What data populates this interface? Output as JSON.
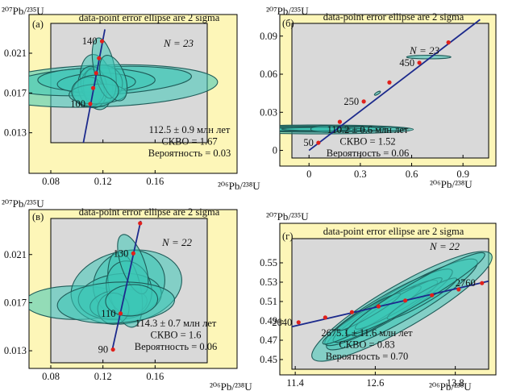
{
  "colors": {
    "frame_fill": "#fdf6b8",
    "plot_fill": "#d9d9d9",
    "ellipse_fill": "#3cc7b6",
    "ellipse_stroke": "#1f5c59",
    "concordia": "#1c2a8c",
    "marker": "#e0201b",
    "text": "#111111"
  },
  "chart_data": [
    {
      "panel": "a",
      "type": "scatter",
      "panel_label": "(а)",
      "title": "data-point error ellipse are 2 sigma",
      "n_label": "N = 23",
      "xlabel": "²⁰⁶Pb/²³⁸U",
      "ylabel": "²⁰⁷Pb/²³⁵U",
      "xlim": [
        0.08,
        0.2
      ],
      "ylim": [
        0.012,
        0.024
      ],
      "xticks": [
        {
          "v": 0.08,
          "t": "0.08"
        },
        {
          "v": 0.12,
          "t": "0.12"
        },
        {
          "v": 0.16,
          "t": "0.16"
        }
      ],
      "yticks": [
        {
          "v": 0.013,
          "t": "0.013"
        },
        {
          "v": 0.017,
          "t": "0.017"
        },
        {
          "v": 0.021,
          "t": "0.021"
        }
      ],
      "concordia": [
        [
          0.105,
          0.012
        ],
        [
          0.1215,
          0.0234
        ]
      ],
      "age_ticks": [
        {
          "x": 0.1193,
          "y": 0.0222,
          "label": "140"
        },
        {
          "x": 0.117,
          "y": 0.0205,
          "label": ""
        },
        {
          "x": 0.1148,
          "y": 0.019,
          "label": ""
        },
        {
          "x": 0.1125,
          "y": 0.0175,
          "label": ""
        },
        {
          "x": 0.1103,
          "y": 0.0159,
          "label": "100"
        }
      ],
      "ellipses": [
        {
          "cx": 0.118,
          "cy": 0.0177,
          "rx": 0.09,
          "ry": 0.0021,
          "rot": -2
        },
        {
          "cx": 0.118,
          "cy": 0.0182,
          "rx": 0.07,
          "ry": 0.0014,
          "rot": -3
        },
        {
          "cx": 0.115,
          "cy": 0.0183,
          "rx": 0.045,
          "ry": 0.0012,
          "rot": 0
        },
        {
          "cx": 0.115,
          "cy": 0.018,
          "rx": 0.03,
          "ry": 0.001,
          "rot": -2
        },
        {
          "cx": 0.115,
          "cy": 0.0181,
          "rx": 0.012,
          "ry": 0.0028,
          "rot": -10
        },
        {
          "cx": 0.119,
          "cy": 0.0179,
          "rx": 0.016,
          "ry": 0.0019,
          "rot": -10
        },
        {
          "cx": 0.112,
          "cy": 0.0176,
          "rx": 0.007,
          "ry": 0.0018,
          "rot": -4
        },
        {
          "cx": 0.112,
          "cy": 0.0176,
          "rx": 0.011,
          "ry": 0.0021,
          "rot": -8
        },
        {
          "cx": 0.109,
          "cy": 0.0171,
          "rx": 0.012,
          "ry": 0.0015,
          "rot": -6
        },
        {
          "cx": 0.116,
          "cy": 0.0169,
          "rx": 0.022,
          "ry": 0.001,
          "rot": -2
        },
        {
          "cx": 0.121,
          "cy": 0.0195,
          "rx": 0.008,
          "ry": 0.0031,
          "rot": -12
        },
        {
          "cx": 0.128,
          "cy": 0.0185,
          "rx": 0.009,
          "ry": 0.0024,
          "rot": -20
        },
        {
          "cx": 0.114,
          "cy": 0.0172,
          "rx": 0.018,
          "ry": 0.0016,
          "rot": -3
        }
      ],
      "result": [
        "112.5 ± 0.9 млн лет",
        "СКВО = 1.67",
        "Вероятность = 0.03"
      ]
    },
    {
      "panel": "b",
      "type": "scatter",
      "panel_label": "(б)",
      "title": "data-point error ellipse are 2 sigma",
      "n_label": "N = 23",
      "xlabel": "²⁰⁶Pb/²³⁸U",
      "ylabel": "²⁰⁷Pb/²³⁵U",
      "xlim": [
        -0.1,
        1.05
      ],
      "ylim": [
        -0.006,
        0.1
      ],
      "xticks": [
        {
          "v": 0,
          "t": "0"
        },
        {
          "v": 0.3,
          "t": "0.3"
        },
        {
          "v": 0.6,
          "t": "0.6"
        },
        {
          "v": 0.9,
          "t": "0.9"
        }
      ],
      "yticks": [
        {
          "v": 0,
          "t": "0"
        },
        {
          "v": 0.03,
          "t": "0.03"
        },
        {
          "v": 0.06,
          "t": "0.06"
        },
        {
          "v": 0.09,
          "t": "0.09"
        }
      ],
      "concordia": [
        [
          0.0,
          0.0
        ],
        [
          1.0,
          0.103
        ]
      ],
      "age_ticks": [
        {
          "x": 0.055,
          "y": 0.006,
          "label": "50"
        },
        {
          "x": 0.18,
          "y": 0.0225,
          "label": ""
        },
        {
          "x": 0.32,
          "y": 0.0385,
          "label": "250"
        },
        {
          "x": 0.47,
          "y": 0.0535,
          "label": ""
        },
        {
          "x": 0.645,
          "y": 0.069,
          "label": "450"
        },
        {
          "x": 0.815,
          "y": 0.085,
          "label": ""
        }
      ],
      "ellipses": [
        {
          "cx": 0.06,
          "cy": 0.0165,
          "rx": 0.55,
          "ry": 0.0035,
          "rot": 0
        },
        {
          "cx": 0.07,
          "cy": 0.0168,
          "rx": 0.5,
          "ry": 0.0024,
          "rot": 0
        },
        {
          "cx": 0.06,
          "cy": 0.017,
          "rx": 0.4,
          "ry": 0.0018,
          "rot": 0
        },
        {
          "cx": 0.03,
          "cy": 0.0165,
          "rx": 0.3,
          "ry": 0.0014,
          "rot": 0
        },
        {
          "cx": 0.04,
          "cy": 0.0168,
          "rx": 0.2,
          "ry": 0.0012,
          "rot": 0
        },
        {
          "cx": 0.1,
          "cy": 0.0168,
          "rx": 0.09,
          "ry": 0.0026,
          "rot": 0
        },
        {
          "cx": 0.7,
          "cy": 0.0735,
          "rx": 0.13,
          "ry": 0.0014,
          "rot": 0
        },
        {
          "cx": 0.4,
          "cy": 0.045,
          "rx": 0.02,
          "ry": 0.0009,
          "rot": -30
        }
      ],
      "result": [
        "110.2 ± 0.6 млн лет",
        "СКВО = 1.52",
        "Вероятность = 0.06"
      ]
    },
    {
      "panel": "c",
      "type": "scatter",
      "panel_label": "(в)",
      "title": "data-point error ellipse are 2 sigma",
      "n_label": "N = 22",
      "xlabel": "²⁰⁶Pb/²³⁸U",
      "ylabel": "²⁰⁷Pb/²³⁵U",
      "xlim": [
        0.08,
        0.2
      ],
      "ylim": [
        0.012,
        0.024
      ],
      "xticks": [
        {
          "v": 0.08,
          "t": "0.08"
        },
        {
          "v": 0.12,
          "t": "0.12"
        },
        {
          "v": 0.16,
          "t": "0.16"
        }
      ],
      "yticks": [
        {
          "v": 0.013,
          "t": "0.013"
        },
        {
          "v": 0.017,
          "t": "0.017"
        },
        {
          "v": 0.021,
          "t": "0.021"
        }
      ],
      "concordia": [
        [
          0.127,
          0.013
        ],
        [
          0.149,
          0.0238
        ]
      ],
      "age_ticks": [
        {
          "x": 0.1277,
          "y": 0.0131,
          "label": "90"
        },
        {
          "x": 0.1335,
          "y": 0.0161,
          "label": "110"
        },
        {
          "x": 0.1433,
          "y": 0.0211,
          "label": "130"
        },
        {
          "x": 0.1485,
          "y": 0.0236,
          "label": ""
        }
      ],
      "ellipses": [
        {
          "cx": 0.1,
          "cy": 0.017,
          "rx": 0.04,
          "ry": 0.0014,
          "rot": 0
        },
        {
          "cx": 0.138,
          "cy": 0.0183,
          "rx": 0.043,
          "ry": 0.003,
          "rot": -12
        },
        {
          "cx": 0.14,
          "cy": 0.0186,
          "rx": 0.028,
          "ry": 0.0027,
          "rot": -25
        },
        {
          "cx": 0.133,
          "cy": 0.0175,
          "rx": 0.032,
          "ry": 0.0019,
          "rot": -6
        },
        {
          "cx": 0.132,
          "cy": 0.0169,
          "rx": 0.022,
          "ry": 0.0012,
          "rot": -8
        },
        {
          "cx": 0.137,
          "cy": 0.0181,
          "rx": 0.012,
          "ry": 0.0032,
          "rot": -12
        },
        {
          "cx": 0.14,
          "cy": 0.0182,
          "rx": 0.017,
          "ry": 0.0023,
          "rot": -18
        },
        {
          "cx": 0.143,
          "cy": 0.0202,
          "rx": 0.009,
          "ry": 0.0026,
          "rot": -20
        },
        {
          "cx": 0.128,
          "cy": 0.0165,
          "rx": 0.012,
          "ry": 0.0013,
          "rot": -10
        },
        {
          "cx": 0.13,
          "cy": 0.017,
          "rx": 0.045,
          "ry": 0.0017,
          "rot": -3
        },
        {
          "cx": 0.142,
          "cy": 0.0172,
          "rx": 0.02,
          "ry": 0.0013,
          "rot": -4
        }
      ],
      "result": [
        "114.3 ± 0.7 млн лет",
        "СКВО = 1.6",
        "Вероятность = 0.06"
      ]
    },
    {
      "panel": "d",
      "type": "scatter",
      "panel_label": "(г)",
      "title": "data-point error ellipse are 2 sigma",
      "n_label": "N = 22",
      "xlabel": "²⁰⁶Pb/²³⁸U",
      "ylabel": "²⁰⁷Pb/²³⁵U",
      "xlim": [
        11.35,
        14.3
      ],
      "ylim": [
        0.44,
        0.575
      ],
      "xticks": [
        {
          "v": 11.4,
          "t": "11.4"
        },
        {
          "v": 12.6,
          "t": "12.6"
        },
        {
          "v": 13.8,
          "t": "13.8"
        }
      ],
      "yticks": [
        {
          "v": 0.45,
          "t": "0.45"
        },
        {
          "v": 0.47,
          "t": "0.47"
        },
        {
          "v": 0.49,
          "t": "0.49"
        },
        {
          "v": 0.51,
          "t": "0.51"
        },
        {
          "v": 0.53,
          "t": "0.53"
        },
        {
          "v": 0.55,
          "t": "0.55"
        }
      ],
      "concordia": [
        [
          11.35,
          0.484
        ],
        [
          14.3,
          0.531
        ]
      ],
      "age_ticks": [
        {
          "x": 11.45,
          "y": 0.4885,
          "label": "2640"
        },
        {
          "x": 11.85,
          "y": 0.4935,
          "label": ""
        },
        {
          "x": 12.25,
          "y": 0.499,
          "label": ""
        },
        {
          "x": 12.65,
          "y": 0.505,
          "label": ""
        },
        {
          "x": 13.05,
          "y": 0.511,
          "label": ""
        },
        {
          "x": 13.45,
          "y": 0.5165,
          "label": ""
        },
        {
          "x": 13.85,
          "y": 0.5225,
          "label": ""
        },
        {
          "x": 14.2,
          "y": 0.529,
          "label": "2760"
        }
      ],
      "ellipses": [
        {
          "cx": 13.0,
          "cy": 0.505,
          "rx": 1.55,
          "ry": 0.022,
          "rot": -30
        },
        {
          "cx": 13.0,
          "cy": 0.507,
          "rx": 1.3,
          "ry": 0.016,
          "rot": -30
        },
        {
          "cx": 12.8,
          "cy": 0.504,
          "rx": 1.1,
          "ry": 0.013,
          "rot": -30
        },
        {
          "cx": 12.75,
          "cy": 0.5,
          "rx": 0.9,
          "ry": 0.01,
          "rot": -30
        },
        {
          "cx": 12.55,
          "cy": 0.496,
          "rx": 0.85,
          "ry": 0.008,
          "rot": -30
        },
        {
          "cx": 12.95,
          "cy": 0.508,
          "rx": 0.75,
          "ry": 0.007,
          "rot": -30
        },
        {
          "cx": 13.3,
          "cy": 0.513,
          "rx": 0.6,
          "ry": 0.006,
          "rot": -30
        },
        {
          "cx": 12.5,
          "cy": 0.499,
          "rx": 0.55,
          "ry": 0.005,
          "rot": -30
        },
        {
          "cx": 13.2,
          "cy": 0.518,
          "rx": 1.2,
          "ry": 0.011,
          "rot": -30
        }
      ],
      "result": [
        "2675.1 ± 11.6 млн лет",
        "СКВО = 0.83",
        "Вероятность = 0.70"
      ]
    }
  ]
}
